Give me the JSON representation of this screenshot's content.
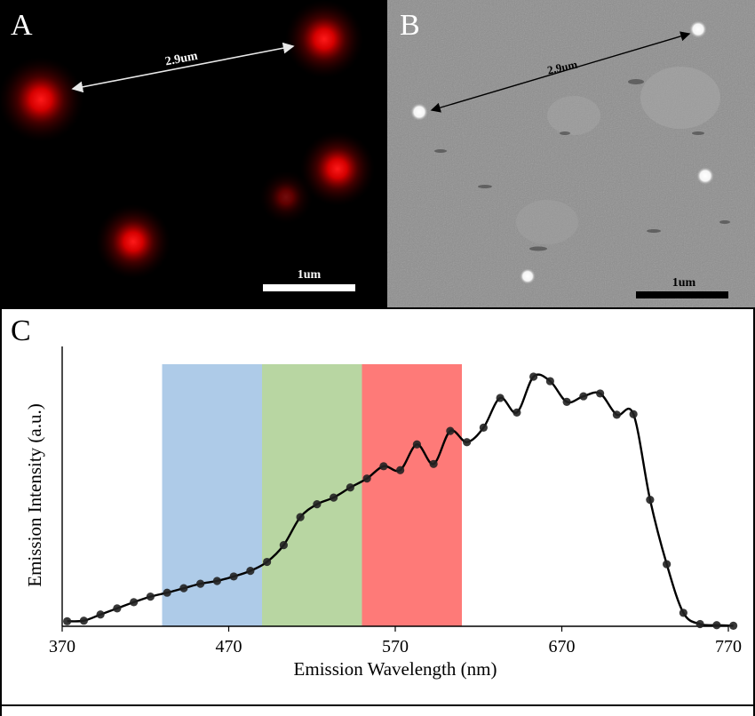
{
  "panels": {
    "a": {
      "letter": "A",
      "distance_label": "2.9um",
      "scalebar_label": "1um"
    },
    "b": {
      "letter": "B",
      "distance_label": "2.9um",
      "scalebar_label": "1um"
    },
    "c": {
      "letter": "C"
    }
  },
  "colors": {
    "panel_a_background": "#000000",
    "emitter_red": "#ff2020",
    "panel_b_background": "#8e8e8e",
    "band_blue": "#aecbe8",
    "band_green": "#b8d6a2",
    "band_red": "#fe7a78",
    "curve": "#000000"
  },
  "chart_data": {
    "type": "line",
    "xlabel": "Emission Wavelength (nm)",
    "ylabel": "Emission Intensity (a.u.)",
    "xlim": [
      370,
      770
    ],
    "ylim": [
      0,
      100
    ],
    "xticks": [
      370,
      470,
      570,
      670,
      770
    ],
    "x_tick_labels": [
      "370",
      "470",
      "570",
      "670",
      "770"
    ],
    "y_tick_labels": [],
    "grid": false,
    "legend": "none",
    "bands": [
      {
        "x0": 430,
        "x1": 490,
        "color": "blue"
      },
      {
        "x0": 490,
        "x1": 550,
        "color": "green"
      },
      {
        "x0": 550,
        "x1": 610,
        "color": "red"
      }
    ],
    "series": [
      {
        "x": [
          373,
          383,
          393,
          403,
          413,
          423,
          433,
          443,
          453,
          463,
          473,
          483,
          493,
          503,
          513,
          523,
          533,
          543,
          553,
          563,
          573,
          583,
          593,
          603,
          613,
          623,
          633,
          643,
          653,
          663,
          673,
          683,
          693,
          703,
          713,
          723,
          733,
          743,
          753,
          763,
          773
        ],
        "y": [
          1.8,
          2.0,
          4.2,
          6.4,
          8.6,
          10.6,
          12.0,
          13.6,
          15.2,
          16.2,
          17.8,
          19.8,
          23.0,
          29.0,
          39.0,
          43.6,
          46.0,
          49.6,
          52.8,
          57.2,
          55.8,
          65.0,
          58.0,
          69.8,
          65.8,
          71.0,
          81.6,
          76.4,
          89.2,
          87.6,
          80.2,
          82.2,
          83.2,
          75.6,
          75.8,
          45.2,
          22.2,
          4.8,
          0.8,
          0.4,
          0.2
        ]
      }
    ]
  }
}
